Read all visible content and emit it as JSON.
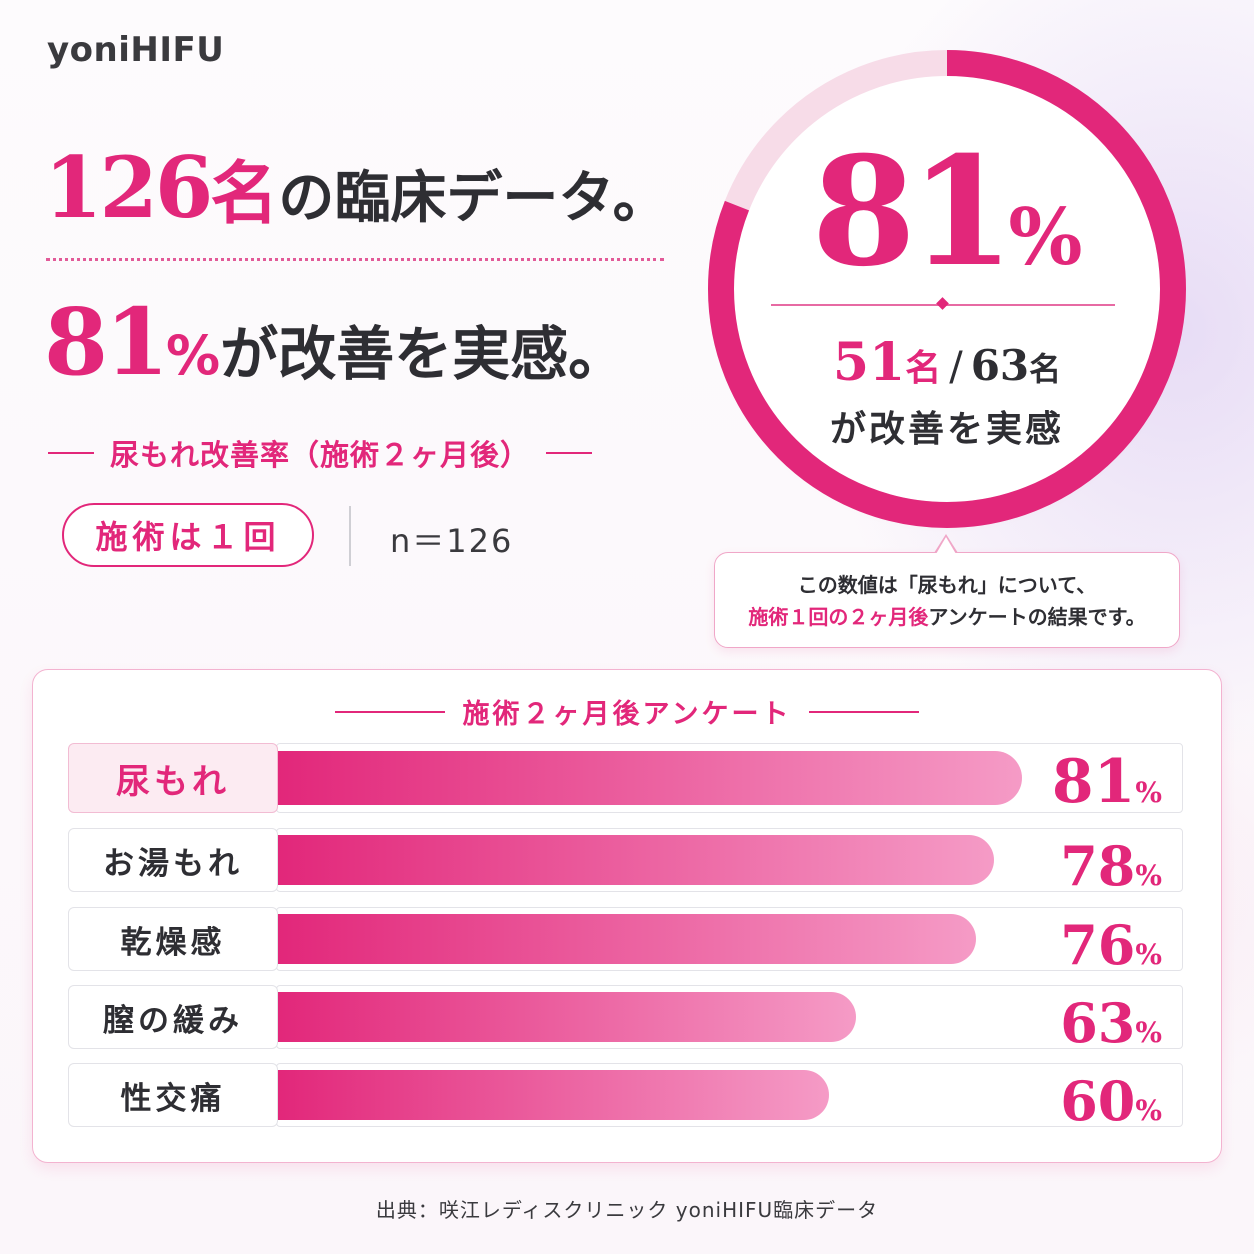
{
  "brand": "yoniHIFU",
  "headline1": {
    "number": "126",
    "unit": "名",
    "rest": "の臨床データ。"
  },
  "headline2": {
    "number": "81",
    "percent": "%",
    "rest": "が改善を実感。"
  },
  "subline": "尿もれ改善率（施術２ヶ月後）",
  "pill": "施術は１回",
  "sample": "n＝126",
  "donut": {
    "value": 81,
    "value_text": "81",
    "percent": "%",
    "count_num": "51",
    "count_unit": "名",
    "slash": "/",
    "total_num": "63",
    "total_unit": "名",
    "caption": "が改善を実感",
    "colors": {
      "fill": "#e2277a",
      "rest": "#f7dce8"
    }
  },
  "note": {
    "line1": "この数値は「尿もれ」について、",
    "line2_highlight": "施術１回の２ヶ月後",
    "line2_rest": "アンケートの結果です。"
  },
  "panel_title": "施術２ヶ月後アンケート",
  "chart_data": {
    "type": "bar",
    "orientation": "horizontal",
    "title": "施術２ヶ月後アンケート",
    "categories": [
      "尿もれ",
      "お湯もれ",
      "乾燥感",
      "膣の緩み",
      "性交痛"
    ],
    "values": [
      81,
      78,
      76,
      63,
      60
    ],
    "value_labels": [
      "81",
      "78",
      "76",
      "63",
      "60"
    ],
    "unit": "%",
    "xlim": [
      0,
      100
    ],
    "highlight_index": 0,
    "colors": {
      "bar_start": "#e2277a",
      "bar_end": "#f59bc6"
    }
  },
  "source": "出典：咲江レディスクリニック yoniHIFU臨床データ"
}
